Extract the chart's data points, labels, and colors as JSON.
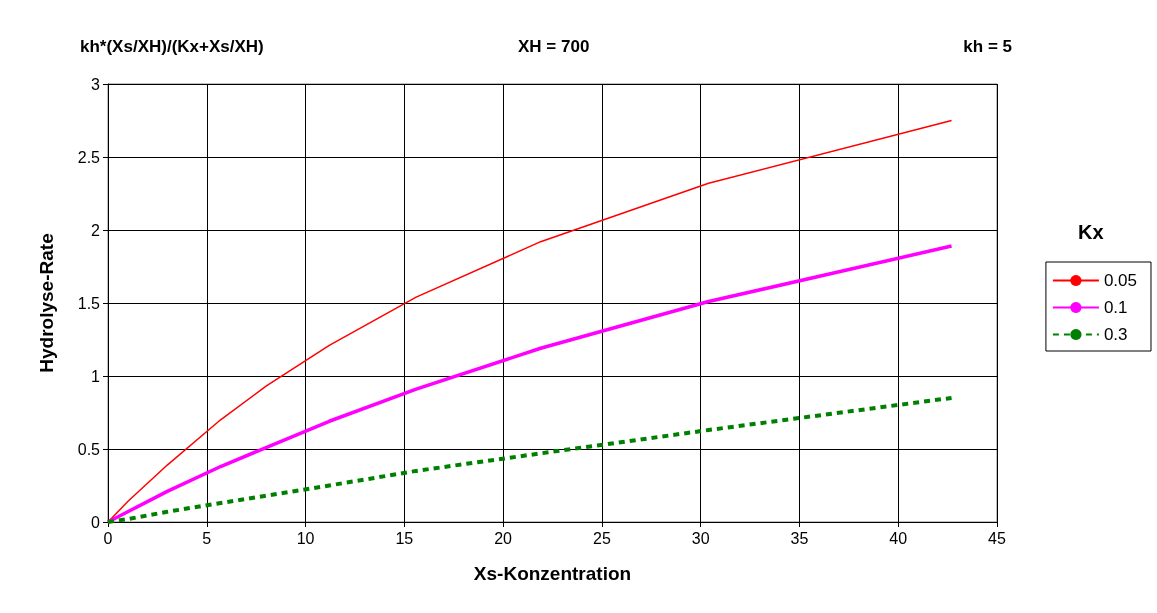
{
  "chart_data": {
    "type": "line",
    "title": "kh*(Xs/XH)/(Kx+Xs/XH)",
    "annotations": [
      "XH = 700",
      "kh = 5"
    ],
    "xlabel": "Xs-Konzentration",
    "ylabel": "Hydrolyse-Rate",
    "legend_title": "Kx",
    "x": [
      0,
      1,
      3,
      5.7,
      8,
      11.2,
      15.6,
      21.9,
      30.4,
      42.7
    ],
    "series": [
      {
        "name": "0.05",
        "color": "#ff0000",
        "line_style": "solid",
        "values": [
          0,
          0.14,
          0.39,
          0.7,
          0.93,
          1.21,
          1.54,
          1.92,
          2.32,
          2.75
        ]
      },
      {
        "name": "0.1",
        "color": "#ff00ff",
        "line_style": "solid",
        "values": [
          0,
          0.07,
          0.21,
          0.38,
          0.51,
          0.69,
          0.91,
          1.19,
          1.51,
          1.89
        ]
      },
      {
        "name": "0.3",
        "color": "#008000",
        "line_style": "dashed",
        "values": [
          0,
          0.02,
          0.07,
          0.13,
          0.18,
          0.25,
          0.35,
          0.47,
          0.63,
          0.85
        ]
      }
    ],
    "xlim": [
      0,
      45
    ],
    "xticks": [
      0,
      5,
      10,
      15,
      20,
      25,
      30,
      35,
      40,
      45
    ],
    "ylim": [
      0,
      3
    ],
    "yticks": [
      0,
      0.5,
      1,
      1.5,
      2,
      2.5,
      3
    ],
    "grid": true,
    "legend": "right",
    "marker": "none"
  }
}
